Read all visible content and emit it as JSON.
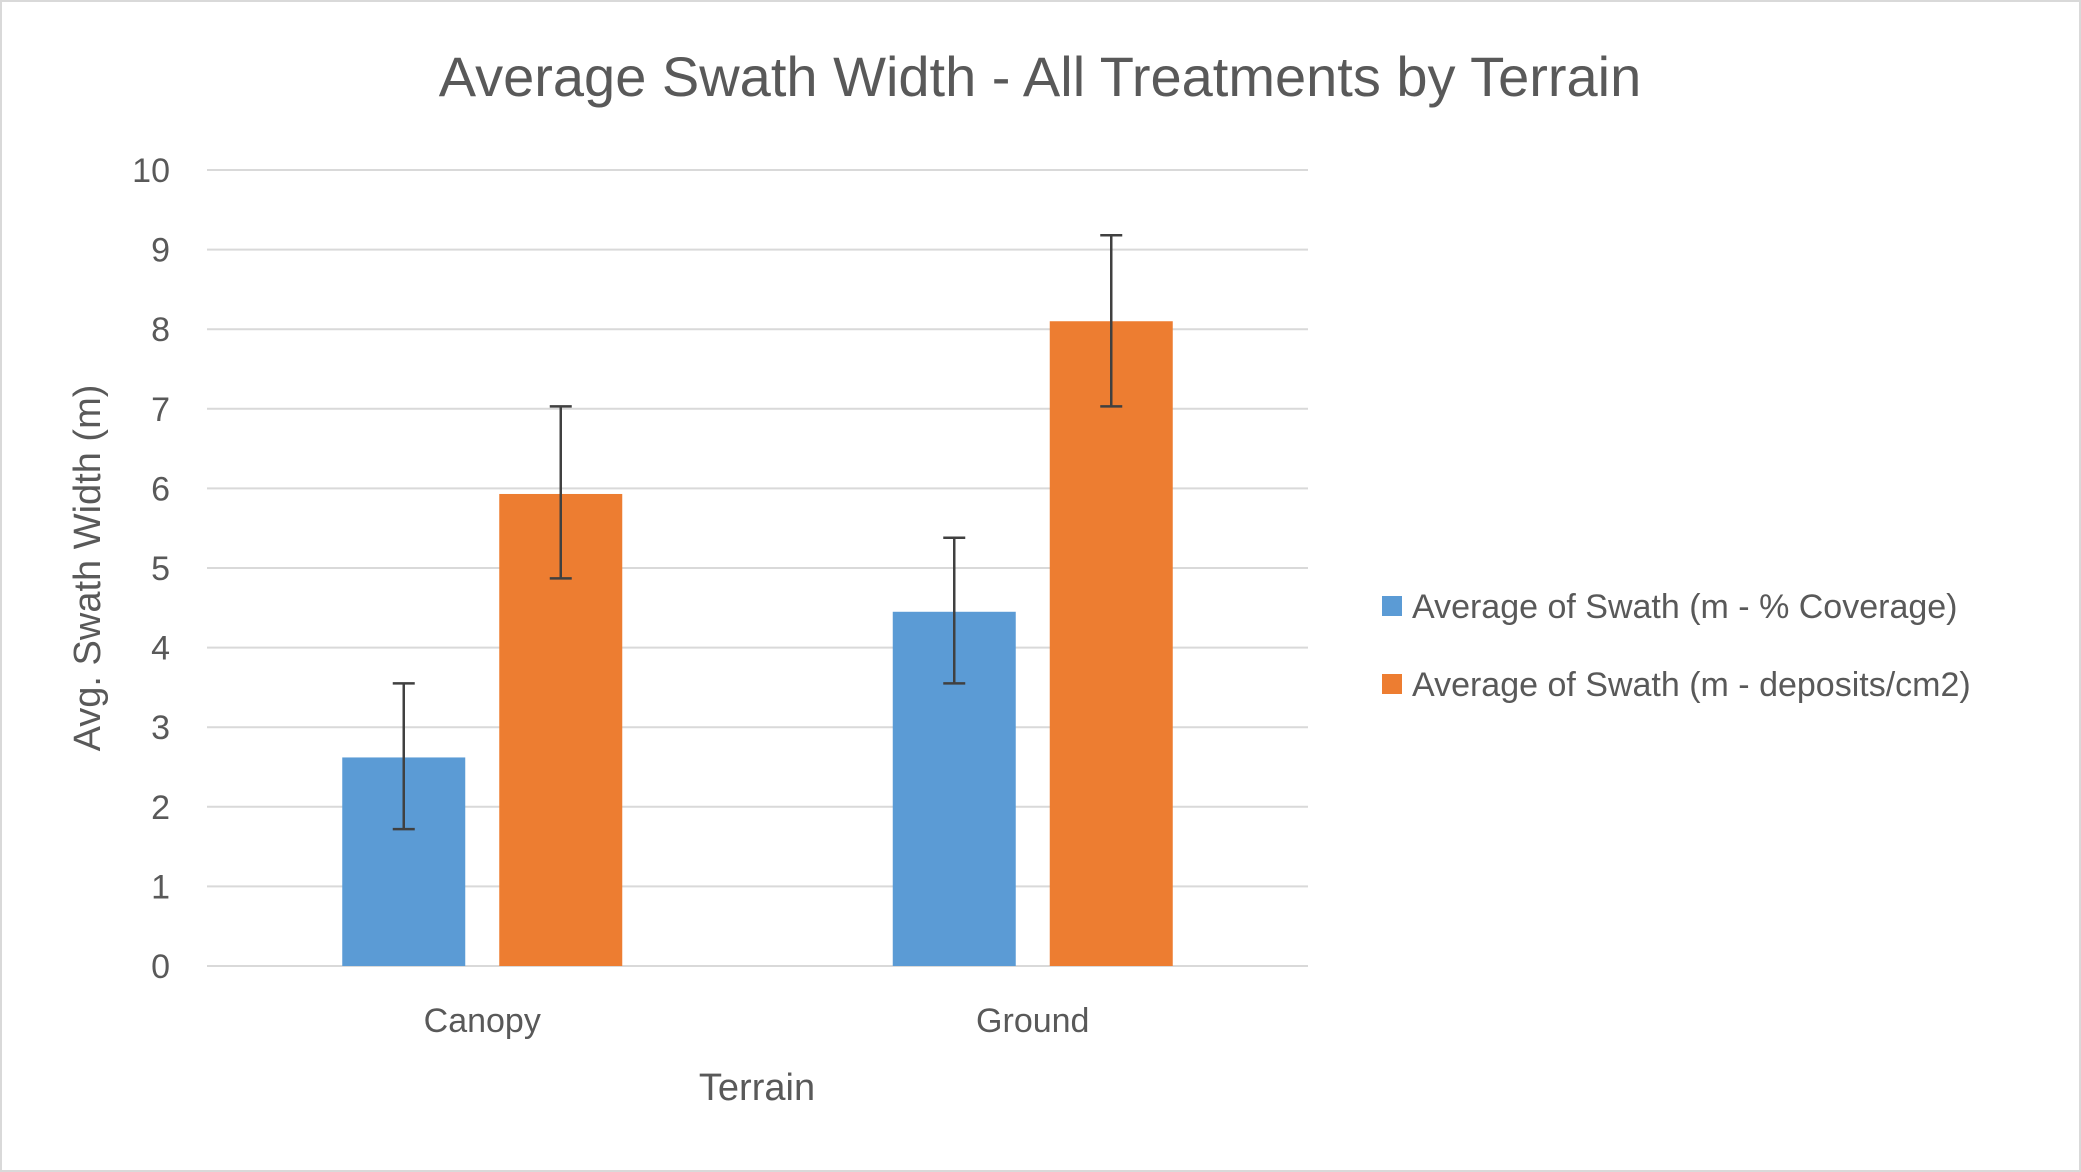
{
  "chart_data": {
    "type": "bar",
    "title": "Average Swath Width - All Treatments by Terrain",
    "xlabel": "Terrain",
    "ylabel": "Avg. Swath Width (m)",
    "categories": [
      "Canopy",
      "Ground"
    ],
    "y_ticks": [
      "0",
      "1",
      "2",
      "3",
      "4",
      "5",
      "6",
      "7",
      "8",
      "9",
      "10"
    ],
    "ylim": [
      0,
      10
    ],
    "grid": true,
    "legend_position": "right",
    "series": [
      {
        "name": "Average of Swath (m - % Coverage)",
        "color": "#5b9bd5",
        "values": [
          2.62,
          4.45
        ],
        "error_low": [
          1.72,
          3.55
        ],
        "error_high": [
          3.55,
          5.38
        ]
      },
      {
        "name": "Average of Swath (m - deposits/cm2)",
        "color": "#ed7d31",
        "values": [
          5.93,
          8.1
        ],
        "error_low": [
          4.87,
          7.03
        ],
        "error_high": [
          7.03,
          9.18
        ]
      }
    ],
    "colors": {
      "grid": "#d9d9d9",
      "error_bar": "#404040",
      "text": "#595959"
    }
  }
}
